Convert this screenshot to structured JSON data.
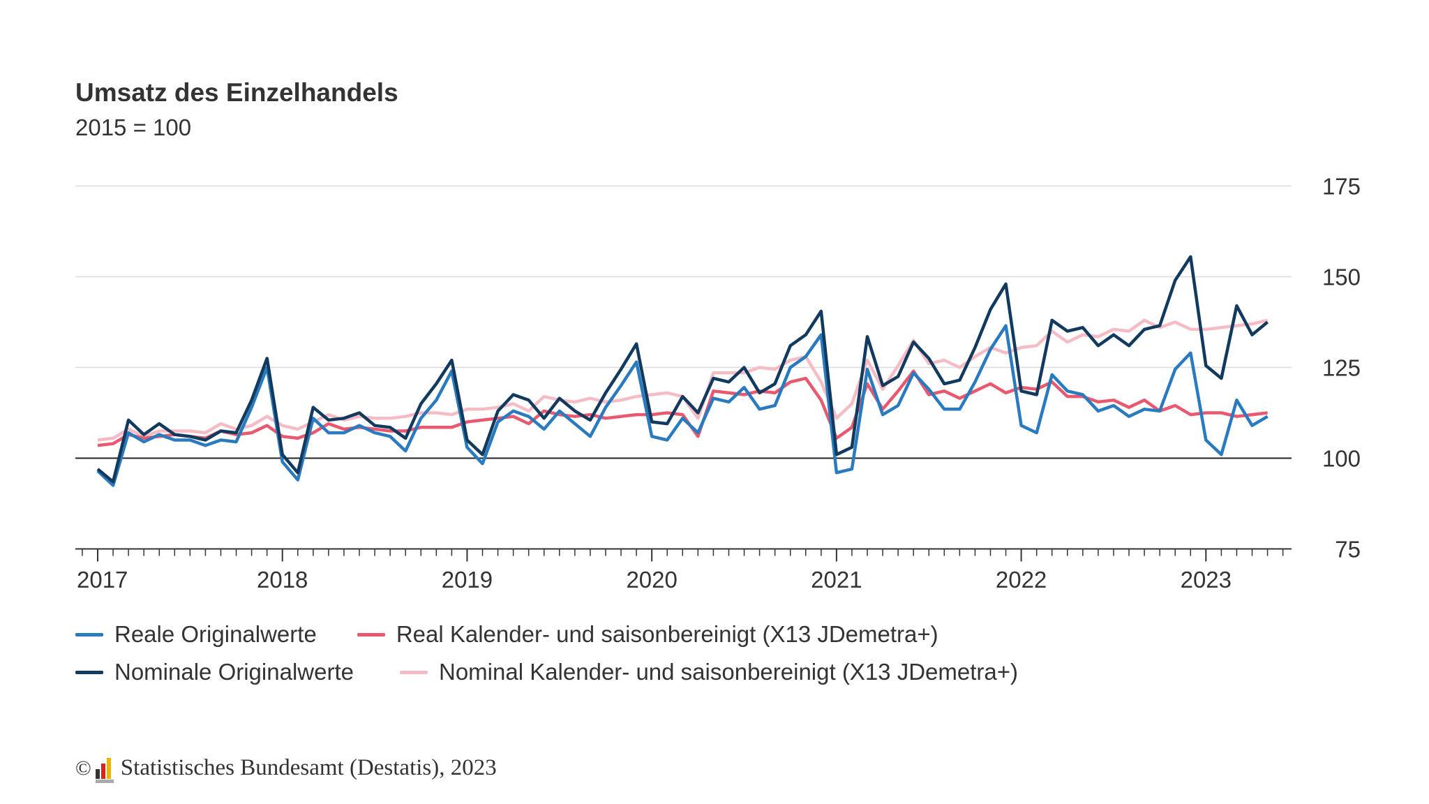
{
  "chart_data": {
    "type": "line",
    "title": "Umsatz des Einzelhandels",
    "subtitle": "2015 = 100",
    "xlabel": "",
    "ylabel": "",
    "x_start": "2017-01",
    "x_end": "2023-05",
    "x_frequency": "monthly",
    "x_tick_labels": [
      "2017",
      "2018",
      "2019",
      "2020",
      "2021",
      "2022",
      "2023"
    ],
    "ylim": [
      75,
      175
    ],
    "y_ticks": [
      75,
      100,
      125,
      150,
      175
    ],
    "y_axis_side": "right",
    "grid": true,
    "reference_line": 100,
    "legend_placement": "bottom",
    "series": [
      {
        "name": "Reale Originalwerte",
        "color": "#2a7abf",
        "values": [
          96.5,
          92.5,
          107,
          104.5,
          106.5,
          105,
          105,
          103.5,
          105,
          104.5,
          114,
          125,
          99,
          94,
          111,
          107,
          107,
          109,
          107,
          106,
          102,
          111,
          116,
          124,
          103,
          98.5,
          110,
          113,
          111.5,
          108,
          113,
          109.5,
          106,
          114,
          120,
          126.5,
          106,
          105,
          111,
          107,
          116.5,
          115.5,
          119.5,
          113.5,
          114.5,
          125,
          128,
          134,
          96,
          97,
          124.5,
          112,
          114.5,
          123.5,
          119,
          113.5,
          113.5,
          121,
          130,
          136.5,
          109,
          107,
          123,
          118.5,
          117.5,
          113,
          114.5,
          111.5,
          113.5,
          113,
          124.5,
          129,
          105,
          101,
          116,
          109,
          111.5
        ]
      },
      {
        "name": "Real Kalender- und saisonbereinigt (X13 JDemetra+)",
        "color": "#e8596f",
        "values": [
          103.5,
          104,
          106.5,
          105.5,
          106,
          106.5,
          106,
          105.5,
          107.5,
          106.5,
          107,
          109,
          106,
          105.5,
          107,
          109.5,
          108,
          108.5,
          108,
          107.5,
          107.5,
          108.5,
          108.5,
          108.5,
          110,
          110.5,
          111,
          111.5,
          109.5,
          113,
          112,
          111.5,
          112,
          111,
          111.5,
          112,
          112,
          112.5,
          112,
          106,
          118.5,
          118,
          117.5,
          118.5,
          118,
          121,
          122,
          116,
          105.5,
          108.5,
          120.5,
          113.5,
          118.5,
          124,
          117.5,
          118.5,
          116.5,
          118.5,
          120.5,
          118,
          119.5,
          119,
          121,
          117,
          117,
          115.5,
          116,
          114,
          116,
          113,
          114.5,
          112,
          112.5,
          112.5,
          111.5,
          112,
          112.5
        ]
      },
      {
        "name": "Nominale Originalwerte",
        "color": "#123a5e",
        "values": [
          97,
          93.5,
          110.5,
          106.5,
          109.5,
          106.5,
          106,
          105,
          107.5,
          107,
          116,
          127.5,
          101,
          96,
          114,
          110.5,
          111,
          112.5,
          109,
          108.5,
          105.5,
          115,
          120.5,
          127,
          105,
          101,
          113,
          117.5,
          116,
          111,
          116.5,
          113,
          110.5,
          118,
          124.5,
          131.5,
          110,
          109.5,
          117,
          112.5,
          122,
          121,
          125,
          118,
          120.5,
          131,
          134,
          140.5,
          101,
          103,
          133.5,
          120,
          122.5,
          132,
          127.5,
          120.5,
          121.5,
          130.5,
          141,
          148,
          118.5,
          117.5,
          138,
          135,
          136,
          131,
          134,
          131,
          135.5,
          136.5,
          149,
          155.5,
          125.5,
          122,
          142,
          134,
          137.5
        ]
      },
      {
        "name": "Nominal Kalender- und saisonbereinigt (X13 JDemetra+)",
        "color": "#f5bcc6",
        "values": [
          105,
          105.5,
          108,
          106,
          107.5,
          107.5,
          107.5,
          107,
          109.5,
          108,
          109,
          111.5,
          109,
          108,
          110,
          112,
          110.5,
          111.5,
          111,
          111,
          111.5,
          112.5,
          112.5,
          112,
          113.5,
          113.5,
          114,
          115,
          113,
          117,
          116,
          115.5,
          116.5,
          115.5,
          116,
          117,
          117.5,
          118,
          117,
          111,
          123.5,
          123.5,
          123.5,
          125,
          124.5,
          127,
          128,
          121,
          111,
          115,
          127,
          119,
          125.5,
          132.5,
          126,
          127,
          125,
          128,
          130.5,
          129,
          130.5,
          131,
          135,
          132,
          134,
          133.5,
          135.5,
          135,
          138,
          136,
          137.5,
          135.5,
          135.5,
          136,
          136.5,
          137,
          138
        ]
      }
    ]
  },
  "legend": {
    "row1": [
      0,
      1
    ],
    "row2": [
      2,
      3
    ]
  },
  "footer": {
    "copyright": "©",
    "source": "Statistisches Bundesamt (Destatis), 2023"
  }
}
